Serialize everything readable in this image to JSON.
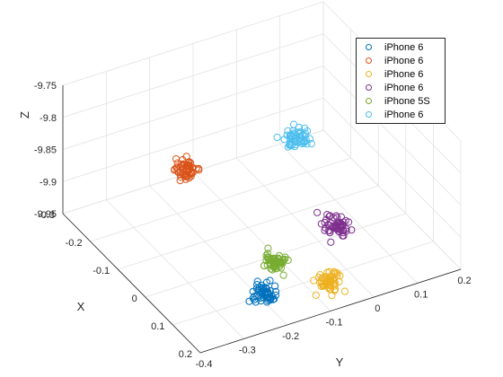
{
  "chart_data": {
    "type": "scatter",
    "dimensions": 3,
    "xlabel": "X",
    "ylabel": "Y",
    "zlabel": "Z",
    "xlim": [
      -0.3,
      0.2
    ],
    "ylim": [
      -0.4,
      0.2
    ],
    "zlim": [
      -9.95,
      -9.75
    ],
    "xticks": [
      "-0.3",
      "-0.2",
      "-0.1",
      "0",
      "0.1",
      "0.2"
    ],
    "yticks": [
      "-0.4",
      "-0.3",
      "-0.2",
      "-0.1",
      "0",
      "0.1",
      "0.2"
    ],
    "zticks": [
      "-9.95",
      "-9.9",
      "-9.85",
      "-9.8",
      "-9.75"
    ],
    "grid": true,
    "legend_position": "top-right",
    "series": [
      {
        "name": "iPhone 6",
        "color": "#0072BD",
        "center": [
          0.1,
          -0.19,
          -9.946
        ]
      },
      {
        "name": "iPhone 6",
        "color": "#D95319",
        "center": [
          -0.2,
          -0.18,
          -9.885
        ]
      },
      {
        "name": "iPhone 6",
        "color": "#EDB120",
        "center": [
          0.1,
          -0.04,
          -9.962
        ]
      },
      {
        "name": "iPhone 6",
        "color": "#7E2F8E",
        "center": [
          0.0,
          0.04,
          -9.936
        ]
      },
      {
        "name": "iPhone 5S",
        "color": "#77AC30",
        "center": [
          0.06,
          -0.14,
          -9.925
        ]
      },
      {
        "name": "iPhone 6",
        "color": "#4DBEEE",
        "center": [
          -0.14,
          0.04,
          -9.857
        ]
      }
    ]
  }
}
